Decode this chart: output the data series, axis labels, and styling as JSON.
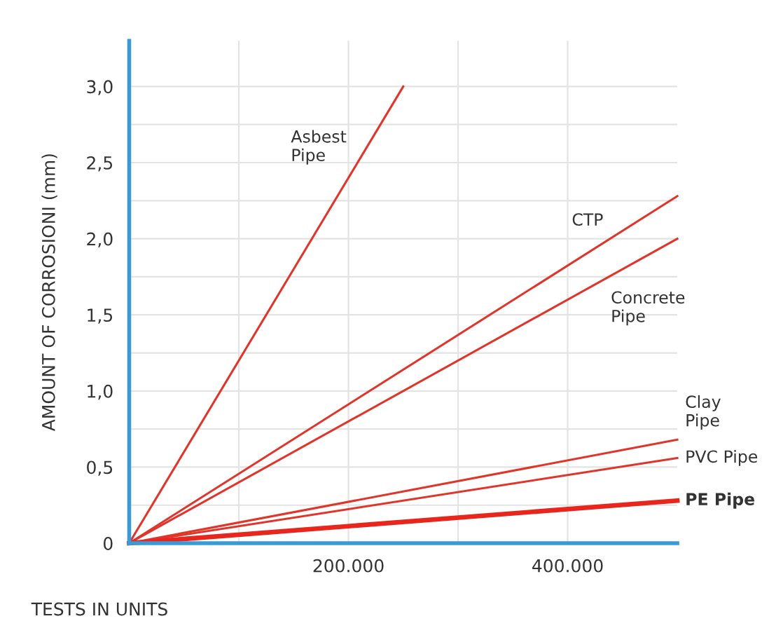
{
  "chart_data": {
    "type": "line",
    "xlabel": "TESTS IN UNITS",
    "ylabel": "AMOUNT OF CORROSIONI (mm)",
    "xlim": [
      0,
      500000
    ],
    "ylim": [
      0,
      3.3
    ],
    "xticks": [
      {
        "value": 100000,
        "label": null
      },
      {
        "value": 200000,
        "label": "200.000"
      },
      {
        "value": 300000,
        "label": null
      },
      {
        "value": 400000,
        "label": "400.000"
      }
    ],
    "yticks": [
      {
        "value": 0,
        "label": "0"
      },
      {
        "value": 0.25,
        "label": null
      },
      {
        "value": 0.5,
        "label": "0,5"
      },
      {
        "value": 0.75,
        "label": null
      },
      {
        "value": 1.0,
        "label": "1,0"
      },
      {
        "value": 1.25,
        "label": null
      },
      {
        "value": 1.5,
        "label": "1,5"
      },
      {
        "value": 1.75,
        "label": null
      },
      {
        "value": 2.0,
        "label": "2,0"
      },
      {
        "value": 2.25,
        "label": null
      },
      {
        "value": 2.5,
        "label": "2,5"
      },
      {
        "value": 2.75,
        "label": null
      },
      {
        "value": 3.0,
        "label": "3,0"
      }
    ],
    "grid": true,
    "marker": "none",
    "line_style": "solid",
    "series": [
      {
        "name": "Asbest Pipe",
        "color": "#e0352b",
        "x": [
          0,
          250000
        ],
        "values": [
          0,
          3.0
        ]
      },
      {
        "name": "CTP",
        "color": "#e0352b",
        "x": [
          0,
          500000
        ],
        "values": [
          0,
          2.28
        ]
      },
      {
        "name": "Concrete Pipe",
        "color": "#e0352b",
        "x": [
          0,
          500000
        ],
        "values": [
          0,
          2.0
        ]
      },
      {
        "name": "Clay Pipe",
        "color": "#e0352b",
        "x": [
          0,
          500000
        ],
        "values": [
          0,
          0.68
        ]
      },
      {
        "name": "PVC Pipe",
        "color": "#e0352b",
        "x": [
          0,
          500000
        ],
        "values": [
          0,
          0.56
        ]
      },
      {
        "name": "PE Pipe",
        "color": "#e8261e",
        "x": [
          0,
          500000
        ],
        "values": [
          0,
          0.28
        ]
      }
    ]
  }
}
